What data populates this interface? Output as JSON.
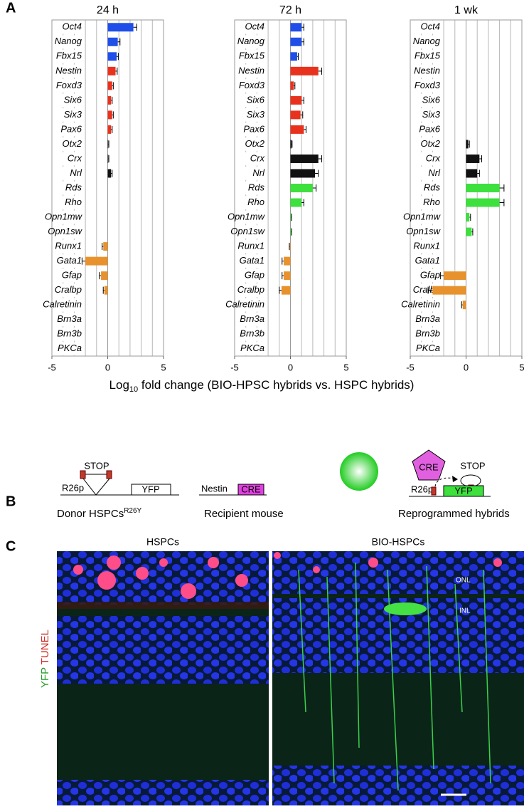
{
  "panel_labels": {
    "a": "A",
    "b": "B",
    "c": "C"
  },
  "x_label": {
    "text": "Log",
    "subscript": "10",
    "rest": " fold change (BIO-HPSC hybrids vs. HSPC hybrids)"
  },
  "chart_data": [
    {
      "type": "hbar",
      "title": "24 h",
      "categories": [
        "Oct4",
        "Nanog",
        "Fbx15",
        "Nestin",
        "Foxd3",
        "Six6",
        "Six3",
        "Pax6",
        "Otx2",
        "Crx",
        "Nrl",
        "Rds",
        "Rho",
        "Opn1mw",
        "Opn1sw",
        "Runx1",
        "Gata1",
        "Gfap",
        "Cralbp",
        "Calretinin",
        "Brn3a",
        "Brn3b",
        "PKCa"
      ],
      "values": [
        2.3,
        0.9,
        0.8,
        0.7,
        0.4,
        0.3,
        0.4,
        0.3,
        0.05,
        0.05,
        0.3,
        0,
        0,
        0,
        0,
        -0.4,
        -2.0,
        -0.6,
        -0.3,
        0,
        0,
        0,
        0
      ],
      "errors": [
        0.3,
        0.2,
        0.15,
        0.15,
        0.1,
        0.1,
        0.1,
        0.1,
        0.05,
        0.05,
        0.1,
        0,
        0,
        0,
        0,
        0.1,
        0.3,
        0.15,
        0.1,
        0,
        0,
        0,
        0
      ],
      "colors": [
        "#1f4fe8",
        "#1f4fe8",
        "#1f4fe8",
        "#e8321e",
        "#e8321e",
        "#e8321e",
        "#e8321e",
        "#e8321e",
        "#111111",
        "#111111",
        "#111111",
        "#3de03d",
        "#3de03d",
        "#3de03d",
        "#3de03d",
        "#e8922e",
        "#e8922e",
        "#e8922e",
        "#e8922e",
        "#e8922e",
        "#e8922e",
        "#e8922e",
        "#e8922e"
      ],
      "xlim": [
        -5,
        5
      ],
      "xticks": [
        -5,
        0,
        5
      ],
      "gridlines": [
        -5,
        -4,
        -3,
        -2,
        -1,
        0,
        1,
        2,
        3,
        4,
        5
      ]
    },
    {
      "type": "hbar",
      "title": "72 h",
      "categories": [
        "Oct4",
        "Nanog",
        "Fbx15",
        "Nestin",
        "Foxd3",
        "Six6",
        "Six3",
        "Pax6",
        "Otx2",
        "Crx",
        "Nrl",
        "Rds",
        "Rho",
        "Opn1mw",
        "Opn1sw",
        "Runx1",
        "Gata1",
        "Gfap",
        "Cralbp",
        "Calretinin",
        "Brn3a",
        "Brn3b",
        "PKCa"
      ],
      "values": [
        1.0,
        1.0,
        0.6,
        2.5,
        0.3,
        1.0,
        0.9,
        1.2,
        0.1,
        2.5,
        2.2,
        2.0,
        1.0,
        0.05,
        0.05,
        -0.05,
        -0.6,
        -0.6,
        -0.8,
        0,
        0,
        0,
        0
      ],
      "errors": [
        0.2,
        0.2,
        0.1,
        0.3,
        0.1,
        0.2,
        0.2,
        0.2,
        0.05,
        0.3,
        0.3,
        0.3,
        0.2,
        0.05,
        0.05,
        0.05,
        0.15,
        0.15,
        0.2,
        0,
        0,
        0,
        0
      ],
      "colors": [
        "#1f4fe8",
        "#1f4fe8",
        "#1f4fe8",
        "#e8321e",
        "#e8321e",
        "#e8321e",
        "#e8321e",
        "#e8321e",
        "#111111",
        "#111111",
        "#111111",
        "#3de03d",
        "#3de03d",
        "#3de03d",
        "#3de03d",
        "#e8922e",
        "#e8922e",
        "#e8922e",
        "#e8922e",
        "#e8922e",
        "#e8922e",
        "#e8922e",
        "#e8922e"
      ],
      "xlim": [
        -5,
        5
      ],
      "xticks": [
        -5,
        0,
        5
      ],
      "gridlines": [
        -5,
        -4,
        -3,
        -2,
        -1,
        0,
        1,
        2,
        3,
        4,
        5
      ]
    },
    {
      "type": "hbar",
      "title": "1 wk",
      "categories": [
        "Oct4",
        "Nanog",
        "Fbx15",
        "Nestin",
        "Foxd3",
        "Six6",
        "Six3",
        "Pax6",
        "Otx2",
        "Crx",
        "Nrl",
        "Rds",
        "Rho",
        "Opn1mw",
        "Opn1sw",
        "Runx1",
        "Gata1",
        "Gfap",
        "Cralbp",
        "Calretinin",
        "Brn3a",
        "Brn3b",
        "PKCa"
      ],
      "values": [
        0,
        0,
        0,
        0,
        0,
        0,
        0,
        0,
        0.2,
        1.2,
        1.0,
        3.0,
        3.0,
        0.3,
        0.5,
        0,
        0,
        -2.0,
        -3.0,
        -0.3,
        0,
        0,
        0
      ],
      "errors": [
        0,
        0,
        0,
        0,
        0,
        0,
        0,
        0,
        0.1,
        0.2,
        0.2,
        0.4,
        0.4,
        0.1,
        0.1,
        0,
        0,
        0.3,
        0.4,
        0.1,
        0,
        0,
        0
      ],
      "colors": [
        "#1f4fe8",
        "#1f4fe8",
        "#1f4fe8",
        "#e8321e",
        "#e8321e",
        "#e8321e",
        "#e8321e",
        "#e8321e",
        "#111111",
        "#111111",
        "#111111",
        "#3de03d",
        "#3de03d",
        "#3de03d",
        "#3de03d",
        "#e8922e",
        "#e8922e",
        "#e8922e",
        "#e8922e",
        "#e8922e",
        "#e8922e",
        "#e8922e",
        "#e8922e"
      ],
      "xlim": [
        -5,
        5
      ],
      "xticks": [
        -5,
        0,
        5
      ],
      "gridlines": [
        -5,
        -4,
        -3,
        -2,
        -1,
        0,
        1,
        2,
        3,
        4,
        5
      ]
    }
  ],
  "panel_b": {
    "donor": {
      "stop": "STOP",
      "promoter": "R26p",
      "reporter": "YFP",
      "label": "Donor HSPCs",
      "superscript": "R26Y"
    },
    "recipient": {
      "promoter": "Nestin",
      "gene": "CRE",
      "label": "Recipient mouse"
    },
    "hybrid": {
      "cre": "CRE",
      "stop": "STOP",
      "promoter": "R26p",
      "reporter": "YFP",
      "label": "Reprogrammed hybrids"
    }
  },
  "panel_c": {
    "left_title": "HSPCs",
    "right_title": "BIO-HSPCs",
    "onl": "ONL",
    "inl": "INL",
    "stain_green": "YFP",
    "stain_red": "TUNEL"
  }
}
